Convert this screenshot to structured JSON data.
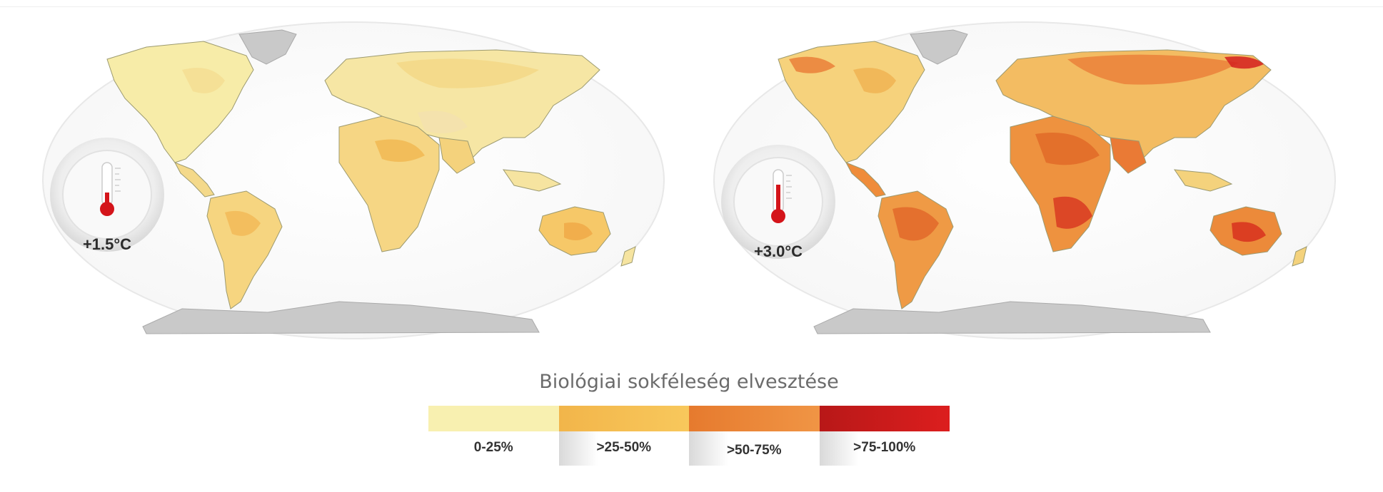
{
  "maps": [
    {
      "id": "warming-1-5",
      "temperature_label": "+1.5°C",
      "thermometer_level": 0.3
    },
    {
      "id": "warming-3-0",
      "temperature_label": "+3.0°C",
      "thermometer_level": 0.65
    }
  ],
  "legend": {
    "title": "Biológiai sokféleség elvesztése",
    "categories": [
      {
        "label": "0-25%",
        "color": "#f8f0b0"
      },
      {
        "label": ">25-50%",
        "color": "#f8c455"
      },
      {
        "label": ">50-75%",
        "color": "#ef8c3a"
      },
      {
        "label": ">75-100%",
        "color": "#dc1e1e"
      }
    ]
  },
  "colors": {
    "antarctica_greenland": "#c9c9c9",
    "coastline": "#9c9a70",
    "thermometer_red": "#d4141a"
  }
}
